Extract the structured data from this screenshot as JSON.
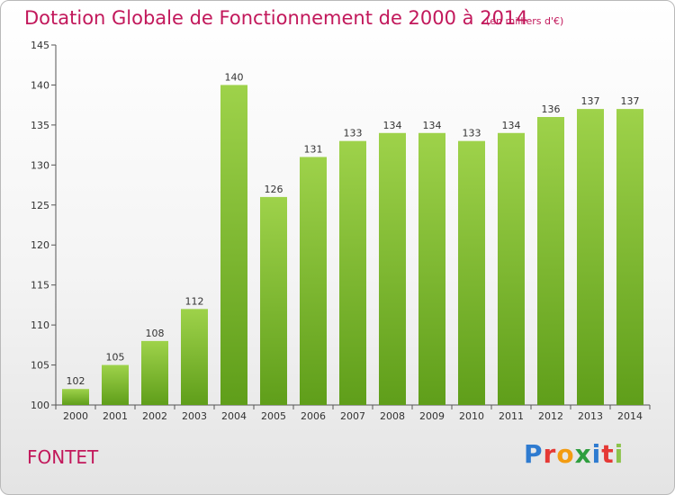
{
  "title": "Dotation Globale de Fonctionnement de 2000 à 2014",
  "unit_note": "(en milliers d'€)",
  "commune": "FONTET",
  "logo": {
    "letters": [
      "P",
      "r",
      "o",
      "x",
      "i",
      "t",
      "i"
    ],
    "colors": [
      "#2e7bd0",
      "#e53935",
      "#f39c12",
      "#2e9e3e",
      "#2e7bd0",
      "#e53935",
      "#8bc34a"
    ]
  },
  "colors": {
    "bar_top": "#9ed24a",
    "bar_bottom": "#5f9e1a",
    "accent": "#c2185b"
  },
  "chart_data": {
    "type": "bar",
    "categories": [
      "2000",
      "2001",
      "2002",
      "2003",
      "2004",
      "2005",
      "2006",
      "2007",
      "2008",
      "2009",
      "2010",
      "2011",
      "2012",
      "2013",
      "2014"
    ],
    "values": [
      102,
      105,
      108,
      112,
      140,
      126,
      131,
      133,
      134,
      134,
      133,
      134,
      136,
      137,
      137
    ],
    "data_labels": [
      "102",
      "105",
      "108",
      "112",
      "140",
      "126",
      "131",
      "133",
      "134",
      "134",
      "133",
      "134",
      "136",
      "137",
      "137"
    ],
    "title": "Dotation Globale de Fonctionnement de 2000 à 2014",
    "xlabel": "",
    "ylabel": "",
    "ylim": [
      100,
      145
    ],
    "yticks": [
      100,
      105,
      110,
      115,
      120,
      125,
      130,
      135,
      140,
      145
    ],
    "grid": false,
    "legend": "none"
  }
}
